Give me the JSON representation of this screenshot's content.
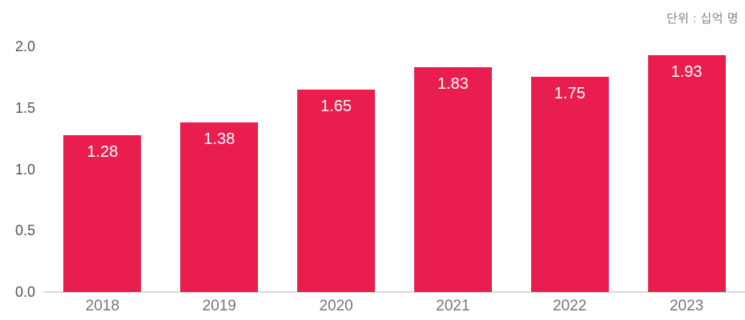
{
  "unit_label": "단위 : 십억 명",
  "colors": {
    "bar": "#E91E4F",
    "bar_value_text": "#ffffff",
    "axis_line": "#d9d9d9",
    "y_tick_text": "#54565c",
    "x_tick_text": "#75767b",
    "unit_text": "#838383",
    "background": "#ffffff"
  },
  "chart_data": {
    "type": "bar",
    "title": "",
    "subtitle": "",
    "unit_annotation": "단위 : 십억 명",
    "categories": [
      "2018",
      "2019",
      "2020",
      "2021",
      "2022",
      "2023"
    ],
    "values": [
      1.28,
      1.38,
      1.65,
      1.83,
      1.75,
      1.93
    ],
    "value_labels": [
      "1.28",
      "1.38",
      "1.65",
      "1.83",
      "1.75",
      "1.93"
    ],
    "value_label_position": "inside-top",
    "xlabel": "",
    "ylabel": "",
    "ylim": [
      0.0,
      2.0
    ],
    "yticks": [
      0.0,
      0.5,
      1.0,
      1.5,
      2.0
    ],
    "ytick_labels": [
      "0.0",
      "0.5",
      "1.0",
      "1.5",
      "2.0"
    ],
    "grid": false,
    "legend_position": "none"
  }
}
